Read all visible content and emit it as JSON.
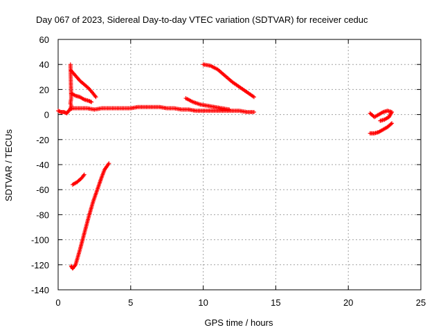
{
  "chart_data": {
    "type": "scatter",
    "title": "Day 067 of 2023, Sidereal Day-to-day VTEC variation (SDTVAR) for receiver ceduc",
    "xlabel": "GPS time / hours",
    "ylabel": "SDTVAR / TECUs",
    "xlim": [
      0,
      25
    ],
    "ylim": [
      -140,
      60
    ],
    "x_ticks": [
      "0",
      "5",
      "10",
      "15",
      "20",
      "25"
    ],
    "y_ticks": [
      "60",
      "40",
      "20",
      "0",
      "-20",
      "-40",
      "-60",
      "-80",
      "-100",
      "-120",
      "-140"
    ],
    "grid": true,
    "marker": "+",
    "color": "#ff0000",
    "series": [
      {
        "x": [
          0.0,
          0.2,
          0.4,
          0.6,
          0.8,
          1.0,
          1.5,
          2.0,
          2.5,
          3.0,
          3.5,
          4.0,
          4.5,
          5.0,
          5.5,
          6.0,
          6.5,
          7.0,
          7.5,
          8.0,
          8.5,
          9.0,
          9.5,
          10.0,
          10.5,
          11.0,
          11.5,
          12.0,
          12.5,
          13.0,
          13.5
        ],
        "y": [
          3,
          2,
          2,
          1,
          4,
          5,
          5,
          5,
          4,
          5,
          5,
          5,
          5,
          5,
          6,
          6,
          6,
          6,
          5,
          5,
          4,
          4,
          3,
          3,
          3,
          3,
          3,
          3,
          3,
          2,
          2
        ]
      },
      {
        "x": [
          0.9,
          1.2,
          1.5,
          1.8,
          2.1,
          2.4,
          2.6
        ],
        "y": [
          35,
          31,
          27,
          24,
          21,
          17,
          14
        ]
      },
      {
        "x": [
          0.9,
          1.2,
          1.5,
          1.8,
          2.1,
          2.3
        ],
        "y": [
          17,
          15,
          14,
          12,
          11,
          10
        ]
      },
      {
        "x": [
          0.85,
          0.9,
          0.85,
          0.9,
          0.85
        ],
        "y": [
          40,
          13,
          9,
          7,
          5
        ]
      },
      {
        "x": [
          1.0,
          1.3,
          1.6,
          1.8
        ],
        "y": [
          -56,
          -54,
          -51,
          -48
        ]
      },
      {
        "x": [
          0.9,
          1.0,
          1.2,
          1.5,
          1.8,
          2.1,
          2.4,
          2.7,
          3.0,
          3.2,
          3.5
        ],
        "y": [
          -121,
          -123,
          -120,
          -108,
          -95,
          -82,
          -70,
          -60,
          -50,
          -44,
          -39
        ]
      },
      {
        "x": [
          10.0,
          10.5,
          11.0,
          11.5,
          12.0,
          12.5,
          13.0,
          13.5
        ],
        "y": [
          40,
          39,
          36,
          31,
          26,
          22,
          18,
          14
        ]
      },
      {
        "x": [
          8.8,
          9.3,
          9.8,
          10.3,
          10.8,
          11.3,
          11.8
        ],
        "y": [
          13,
          10,
          8,
          7,
          6,
          5,
          4
        ]
      },
      {
        "x": [
          21.5,
          21.8,
          22.1,
          22.4,
          22.7,
          23.0
        ],
        "y": [
          -15,
          -15,
          -14,
          -12,
          -10,
          -7
        ]
      },
      {
        "x": [
          21.5,
          21.8,
          22.1,
          22.4,
          22.7,
          23.0,
          22.8,
          22.5,
          22.2
        ],
        "y": [
          1,
          -2,
          0,
          2,
          3,
          2,
          -2,
          -4,
          -5
        ]
      }
    ]
  }
}
